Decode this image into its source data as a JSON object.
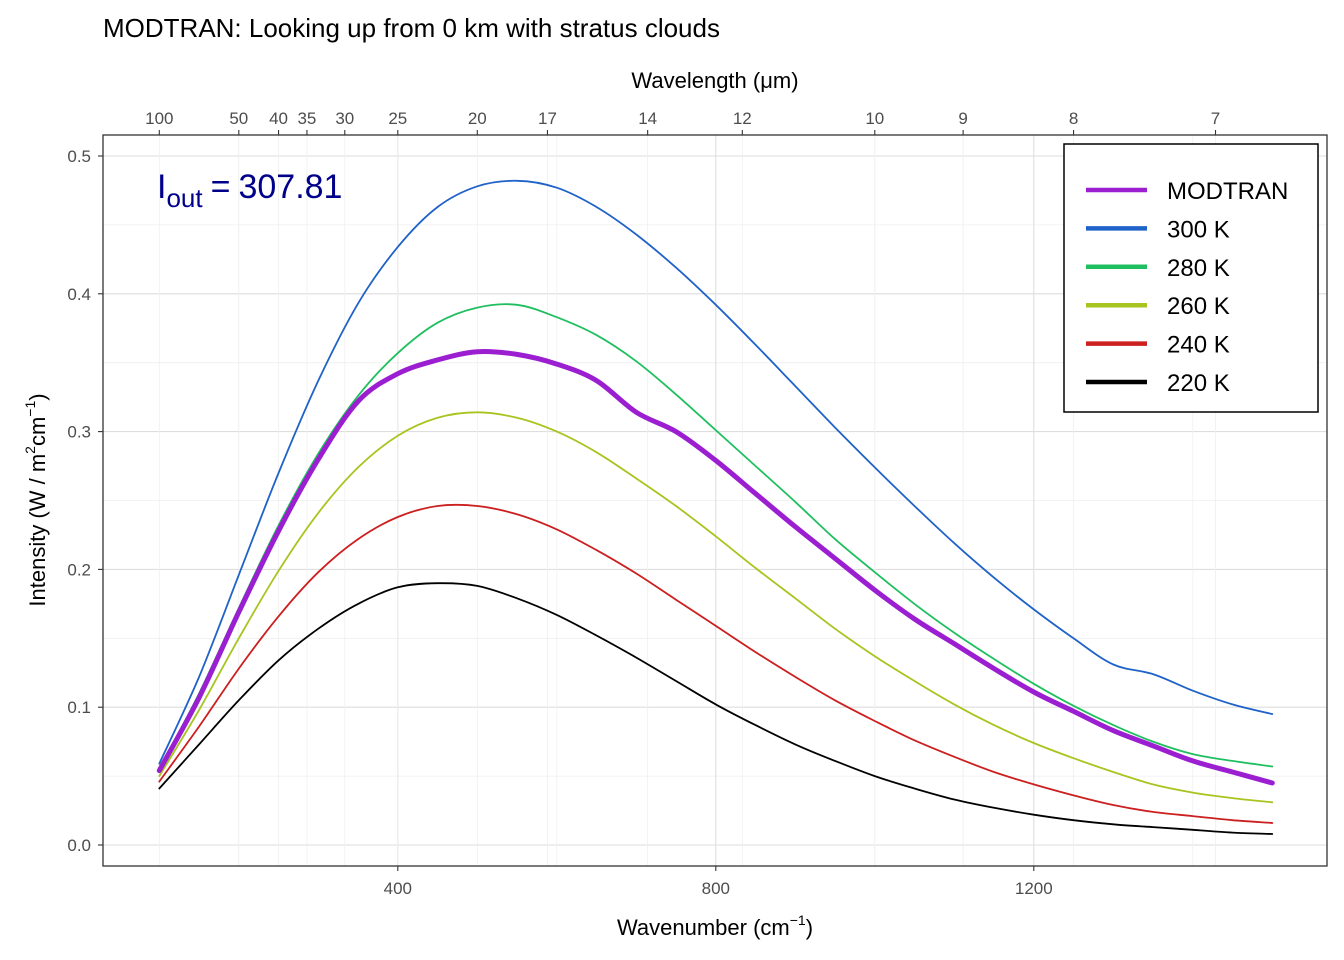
{
  "chart_data": {
    "type": "line",
    "title": "MODTRAN: Looking up from 0 km with stratus clouds",
    "xlabel": "Wavenumber (cm",
    "xlabel_sup": "−1",
    "xlabel_end": ")",
    "ylabel": "Intensity (W / m",
    "ylabel_sup1": "2",
    "ylabel_mid": "cm",
    "ylabel_sup2": "−1",
    "ylabel_end": ")",
    "x2label": "Wavelength (μm)",
    "xlim": [
      100,
      1500
    ],
    "ylim": [
      0,
      0.5
    ],
    "x_ticks": [
      400,
      800,
      1200
    ],
    "x_tick_labels": [
      "400",
      "800",
      "1200"
    ],
    "y_ticks": [
      0.0,
      0.1,
      0.2,
      0.3,
      0.4,
      0.5
    ],
    "y_tick_labels": [
      "0.0",
      "0.1",
      "0.2",
      "0.3",
      "0.4",
      "0.5"
    ],
    "x2_ticks_um": [
      100,
      50,
      40,
      35,
      30,
      25,
      20,
      17,
      14,
      12,
      10,
      9,
      8,
      7
    ],
    "x2_tick_labels": [
      "100",
      "50",
      "40",
      "35",
      "30",
      "25",
      "20",
      "17",
      "14",
      "12",
      "10",
      "9",
      "8",
      "7"
    ],
    "grid": true,
    "legend_position": "top-right",
    "annotation": {
      "base": "I",
      "subscript": "out",
      "equals": "=",
      "value": "307.81"
    },
    "series": [
      {
        "name": "MODTRAN",
        "color": "#9b1fd1",
        "emphasis": true,
        "x": [
          100,
          150,
          200,
          250,
          300,
          350,
          400,
          450,
          500,
          550,
          600,
          650,
          700,
          750,
          800,
          850,
          900,
          950,
          1000,
          1050,
          1100,
          1150,
          1200,
          1250,
          1300,
          1350,
          1400,
          1450,
          1500
        ],
        "y": [
          0.054,
          0.107,
          0.169,
          0.228,
          0.28,
          0.322,
          0.342,
          0.352,
          0.358,
          0.356,
          0.349,
          0.337,
          0.314,
          0.3,
          0.279,
          0.255,
          0.231,
          0.208,
          0.185,
          0.164,
          0.146,
          0.128,
          0.111,
          0.097,
          0.083,
          0.072,
          0.061,
          0.053,
          0.045
        ]
      },
      {
        "name": "300 K",
        "color": "#1f62c8",
        "emphasis": false,
        "x": [
          100,
          150,
          200,
          250,
          300,
          350,
          400,
          450,
          500,
          550,
          600,
          650,
          700,
          750,
          800,
          850,
          900,
          950,
          1000,
          1050,
          1100,
          1150,
          1200,
          1250,
          1300,
          1350,
          1400,
          1450,
          1500
        ],
        "y": [
          0.059,
          0.122,
          0.196,
          0.27,
          0.337,
          0.393,
          0.434,
          0.463,
          0.478,
          0.482,
          0.477,
          0.463,
          0.443,
          0.419,
          0.392,
          0.363,
          0.333,
          0.303,
          0.274,
          0.246,
          0.219,
          0.194,
          0.171,
          0.15,
          0.131,
          0.124,
          0.112,
          0.102,
          0.095
        ]
      },
      {
        "name": "280 K",
        "color": "#1fbf5f",
        "emphasis": false,
        "x": [
          100,
          150,
          200,
          250,
          300,
          350,
          400,
          450,
          500,
          550,
          600,
          650,
          700,
          750,
          800,
          850,
          900,
          950,
          1000,
          1050,
          1100,
          1150,
          1200,
          1250,
          1300,
          1350,
          1400,
          1450,
          1500
        ],
        "y": [
          0.055,
          0.11,
          0.172,
          0.232,
          0.284,
          0.326,
          0.357,
          0.379,
          0.39,
          0.392,
          0.383,
          0.37,
          0.351,
          0.327,
          0.301,
          0.275,
          0.249,
          0.222,
          0.198,
          0.175,
          0.154,
          0.135,
          0.117,
          0.101,
          0.087,
          0.075,
          0.066,
          0.061,
          0.057
        ]
      },
      {
        "name": "260 K",
        "color": "#a8c41f",
        "emphasis": false,
        "x": [
          100,
          150,
          200,
          250,
          300,
          350,
          400,
          450,
          500,
          550,
          600,
          650,
          700,
          750,
          800,
          850,
          900,
          950,
          1000,
          1050,
          1100,
          1150,
          1200,
          1250,
          1300,
          1350,
          1400,
          1450,
          1500
        ],
        "y": [
          0.05,
          0.098,
          0.15,
          0.199,
          0.241,
          0.274,
          0.297,
          0.31,
          0.314,
          0.31,
          0.3,
          0.285,
          0.266,
          0.246,
          0.224,
          0.201,
          0.179,
          0.157,
          0.137,
          0.119,
          0.102,
          0.087,
          0.074,
          0.063,
          0.053,
          0.044,
          0.038,
          0.034,
          0.031
        ]
      },
      {
        "name": "240 K",
        "color": "#cc1f1f",
        "emphasis": false,
        "x": [
          100,
          150,
          200,
          250,
          300,
          350,
          400,
          450,
          500,
          550,
          600,
          650,
          700,
          750,
          800,
          850,
          900,
          950,
          1000,
          1050,
          1100,
          1150,
          1200,
          1250,
          1300,
          1350,
          1400,
          1450,
          1500
        ],
        "y": [
          0.046,
          0.086,
          0.128,
          0.166,
          0.198,
          0.222,
          0.238,
          0.246,
          0.246,
          0.24,
          0.229,
          0.214,
          0.197,
          0.178,
          0.159,
          0.14,
          0.122,
          0.105,
          0.09,
          0.076,
          0.064,
          0.053,
          0.044,
          0.036,
          0.029,
          0.024,
          0.021,
          0.018,
          0.016
        ]
      },
      {
        "name": "220 K",
        "color": "#000000",
        "emphasis": false,
        "x": [
          100,
          150,
          200,
          250,
          300,
          350,
          400,
          450,
          500,
          550,
          600,
          650,
          700,
          750,
          800,
          850,
          900,
          950,
          1000,
          1050,
          1100,
          1150,
          1200,
          1250,
          1300,
          1350,
          1400,
          1450,
          1500
        ],
        "y": [
          0.041,
          0.073,
          0.105,
          0.134,
          0.157,
          0.175,
          0.187,
          0.19,
          0.188,
          0.179,
          0.167,
          0.152,
          0.136,
          0.119,
          0.102,
          0.087,
          0.073,
          0.061,
          0.05,
          0.041,
          0.033,
          0.027,
          0.022,
          0.018,
          0.015,
          0.013,
          0.011,
          0.009,
          0.008
        ]
      }
    ]
  }
}
